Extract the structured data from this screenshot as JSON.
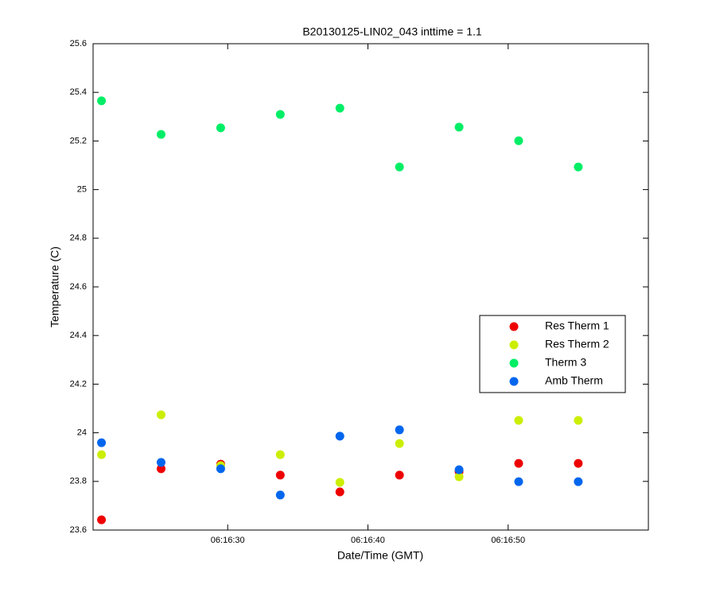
{
  "chart_data": {
    "type": "scatter",
    "title": "B20130125-LIN02_043 inttime = 1.1",
    "x_label": "Date/Time (GMT)",
    "y_label": "Temperature (C)",
    "x": [
      21.0,
      25.25,
      29.5,
      33.75,
      38.0,
      42.25,
      46.5,
      50.75,
      55.0
    ],
    "series": [
      {
        "name": "Res Therm 1",
        "color": "#ee0000",
        "values": [
          23.642,
          23.852,
          23.871,
          23.826,
          23.757,
          23.826,
          23.84,
          23.874,
          23.874
        ]
      },
      {
        "name": "Res Therm 2",
        "color": "#ccee00",
        "values": [
          23.91,
          24.074,
          23.865,
          23.91,
          23.796,
          23.956,
          23.819,
          24.051,
          24.051
        ]
      },
      {
        "name": "Therm 3",
        "color": "#00ee66",
        "values": [
          25.365,
          25.227,
          25.254,
          25.309,
          25.335,
          25.093,
          25.257,
          25.201,
          25.093
        ]
      },
      {
        "name": "Amb Therm",
        "color": "#0066ee",
        "values": [
          23.959,
          23.878,
          23.852,
          23.744,
          23.986,
          24.012,
          23.848,
          23.799,
          23.799
        ]
      }
    ],
    "xlim": [
      20.4,
      60.0
    ],
    "xticks": [
      {
        "value": 30,
        "label": "06:16:30"
      },
      {
        "value": 40,
        "label": "06:16:40"
      },
      {
        "value": 50,
        "label": "06:16:50"
      }
    ],
    "ylim": [
      23.6,
      25.6
    ],
    "yticks": [
      23.6,
      23.8,
      24,
      24.2,
      24.4,
      24.6,
      24.8,
      25,
      25.2,
      25.4,
      25.6
    ],
    "legend": "right"
  }
}
